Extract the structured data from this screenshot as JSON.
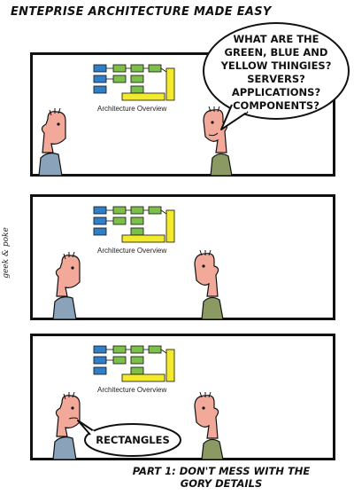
{
  "comic": {
    "title": "ENTEPRISE ARCHITECTURE MADE EASY",
    "credit": "geek & poke",
    "diagram_label": "Architecture Overview",
    "panel1": {
      "speech_lines": [
        "WHAT ARE THE",
        "GREEN, BLUE AND",
        "YELLOW THINGIES?",
        "SERVERS?",
        "APPLICATIONS?",
        "COMPONENTS?"
      ]
    },
    "panel3": {
      "speech": "RECTANGLES"
    },
    "caption_lines": [
      "PART 1: DON'T MESS WITH THE",
      "GORY DETAILS"
    ],
    "colors": {
      "blue": "#2f7fc9",
      "green": "#7cc04a",
      "yellow": "#f2ea2a",
      "skin": "#f2a99a",
      "shirt_blue": "#8aa2ba",
      "shirt_green": "#8a9a62"
    }
  }
}
